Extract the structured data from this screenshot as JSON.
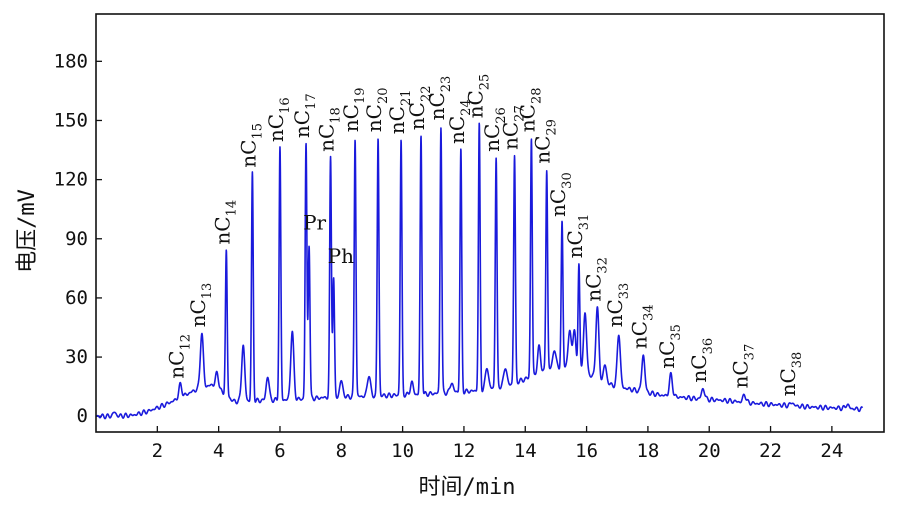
{
  "chart_data": {
    "type": "line",
    "xlabel": "时间/min",
    "ylabel": "电压/mV",
    "xlim": [
      0,
      25.7
    ],
    "ylim": [
      -8,
      204
    ],
    "xticks": [
      2,
      4,
      6,
      8,
      10,
      12,
      14,
      16,
      18,
      20,
      22,
      24
    ],
    "yticks": [
      0,
      30,
      60,
      90,
      120,
      150,
      180
    ],
    "grid": false,
    "series_color": "#1a1adc",
    "baseline": [
      [
        0.0,
        0.0
      ],
      [
        0.6,
        0.0
      ],
      [
        1.2,
        0.5
      ],
      [
        1.7,
        2.5
      ],
      [
        2.2,
        5.5
      ],
      [
        2.7,
        9.0
      ],
      [
        3.2,
        13.0
      ],
      [
        3.8,
        16.0
      ],
      [
        4.5,
        7.5
      ],
      [
        5.5,
        8.0
      ],
      [
        6.5,
        8.5
      ],
      [
        7.5,
        9.5
      ],
      [
        8.5,
        10.0
      ],
      [
        9.5,
        10.5
      ],
      [
        10.5,
        11.0
      ],
      [
        11.5,
        12.0
      ],
      [
        12.5,
        13.0
      ],
      [
        13.5,
        16.0
      ],
      [
        14.2,
        20.0
      ],
      [
        14.8,
        24.0
      ],
      [
        15.4,
        25.5
      ],
      [
        15.9,
        22.5
      ],
      [
        16.5,
        17.5
      ],
      [
        17.0,
        15.0
      ],
      [
        17.8,
        12.5
      ],
      [
        18.5,
        10.5
      ],
      [
        19.5,
        9.0
      ],
      [
        20.5,
        8.0
      ],
      [
        21.5,
        6.5
      ],
      [
        22.5,
        5.5
      ],
      [
        23.5,
        4.5
      ],
      [
        24.5,
        4.0
      ],
      [
        25.0,
        3.5
      ]
    ],
    "peaks": [
      {
        "name": "nC",
        "num": "12",
        "x": 2.75,
        "y": 16
      },
      {
        "name": "nC",
        "num": "13",
        "x": 3.45,
        "y": 42
      },
      {
        "name": "nC",
        "num": "14",
        "x": 4.25,
        "y": 84
      },
      {
        "name": "nC",
        "num": "15",
        "x": 5.1,
        "y": 123
      },
      {
        "name": "nC",
        "num": "16",
        "x": 6.0,
        "y": 136
      },
      {
        "name": "nC",
        "num": "17",
        "x": 6.85,
        "y": 138
      },
      {
        "name": "Pr",
        "num": "",
        "x": 6.95,
        "y": 87
      },
      {
        "name": "nC",
        "num": "18",
        "x": 7.65,
        "y": 131
      },
      {
        "name": "Ph",
        "num": "",
        "x": 7.75,
        "y": 70
      },
      {
        "name": "nC",
        "num": "19",
        "x": 8.45,
        "y": 141
      },
      {
        "name": "nC",
        "num": "20",
        "x": 9.2,
        "y": 141
      },
      {
        "name": "nC",
        "num": "21",
        "x": 9.95,
        "y": 140
      },
      {
        "name": "nC",
        "num": "22",
        "x": 10.6,
        "y": 142
      },
      {
        "name": "nC",
        "num": "23",
        "x": 11.25,
        "y": 147
      },
      {
        "name": "nC",
        "num": "24",
        "x": 11.9,
        "y": 135
      },
      {
        "name": "nC",
        "num": "25",
        "x": 12.5,
        "y": 148
      },
      {
        "name": "nC",
        "num": "26",
        "x": 13.05,
        "y": 131
      },
      {
        "name": "nC",
        "num": "27",
        "x": 13.65,
        "y": 132
      },
      {
        "name": "nC",
        "num": "28",
        "x": 14.2,
        "y": 141
      },
      {
        "name": "nC",
        "num": "29",
        "x": 14.7,
        "y": 125
      },
      {
        "name": "nC",
        "num": "30",
        "x": 15.2,
        "y": 98
      },
      {
        "name": "nC",
        "num": "31",
        "x": 15.75,
        "y": 77
      },
      {
        "name": "nC",
        "num": "32",
        "x": 16.35,
        "y": 55
      },
      {
        "name": "nC",
        "num": "33",
        "x": 17.05,
        "y": 42
      },
      {
        "name": "nC",
        "num": "34",
        "x": 17.85,
        "y": 31
      },
      {
        "name": "nC",
        "num": "35",
        "x": 18.75,
        "y": 21
      },
      {
        "name": "nC",
        "num": "36",
        "x": 19.8,
        "y": 14
      },
      {
        "name": "nC",
        "num": "37",
        "x": 21.15,
        "y": 11
      },
      {
        "name": "nC",
        "num": "38",
        "x": 22.7,
        "y": 7
      }
    ],
    "minor_peaks": [
      {
        "x": 0.6,
        "y": 2
      },
      {
        "x": 3.95,
        "y": 22
      },
      {
        "x": 4.8,
        "y": 36
      },
      {
        "x": 5.6,
        "y": 20
      },
      {
        "x": 6.4,
        "y": 43
      },
      {
        "x": 8.0,
        "y": 18
      },
      {
        "x": 8.9,
        "y": 21
      },
      {
        "x": 10.3,
        "y": 17
      },
      {
        "x": 11.6,
        "y": 17
      },
      {
        "x": 12.75,
        "y": 25
      },
      {
        "x": 13.35,
        "y": 25
      },
      {
        "x": 14.45,
        "y": 35
      },
      {
        "x": 14.95,
        "y": 34
      },
      {
        "x": 15.45,
        "y": 43
      },
      {
        "x": 15.6,
        "y": 43
      },
      {
        "x": 15.95,
        "y": 52
      },
      {
        "x": 16.6,
        "y": 26
      },
      {
        "x": 24.5,
        "y": 6
      }
    ]
  }
}
